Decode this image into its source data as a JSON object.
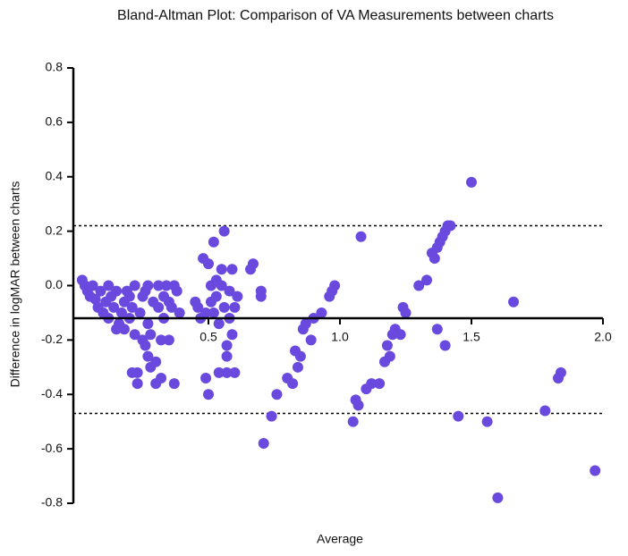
{
  "chart_data": {
    "type": "scatter",
    "title": "Bland-Altman Plot: Comparison of VA Measurements between charts",
    "xlabel": "Average",
    "ylabel": "Difference in logMAR between charts",
    "color": "#6a4ade",
    "xlim": [
      0,
      2.0
    ],
    "ylim": [
      -0.8,
      0.8
    ],
    "xticks": [
      {
        "value": 0.5,
        "label": "0.5"
      },
      {
        "value": 1.0,
        "label": "1.0"
      },
      {
        "value": 1.5,
        "label": "1.5"
      },
      {
        "value": 2.0,
        "label": "2.0"
      }
    ],
    "yticks": [
      0.8,
      0.6,
      0.4,
      0.2,
      {
        "value": 0,
        "label": "0.0"
      },
      -0.2,
      -0.4,
      -0.6,
      -0.8
    ],
    "mean_line": -0.12,
    "limit_lines": [
      0.22,
      -0.47
    ],
    "x": [
      0.02,
      0.03,
      0.04,
      0.05,
      0.06,
      0.07,
      0.08,
      0.09,
      0.1,
      0.11,
      0.12,
      0.12,
      0.13,
      0.14,
      0.15,
      0.16,
      0.17,
      0.18,
      0.18,
      0.19,
      0.2,
      0.2,
      0.21,
      0.22,
      0.22,
      0.23,
      0.23,
      0.24,
      0.25,
      0.25,
      0.26,
      0.27,
      0.27,
      0.28,
      0.28,
      0.29,
      0.3,
      0.3,
      0.31,
      0.31,
      0.32,
      0.32,
      0.33,
      0.33,
      0.34,
      0.35,
      0.35,
      0.36,
      0.37,
      0.37,
      0.38,
      0.39,
      0.27,
      0.21,
      0.15,
      0.26,
      0.45,
      0.46,
      0.47,
      0.48,
      0.49,
      0.49,
      0.5,
      0.5,
      0.51,
      0.51,
      0.52,
      0.52,
      0.53,
      0.53,
      0.54,
      0.54,
      0.55,
      0.55,
      0.56,
      0.56,
      0.57,
      0.57,
      0.58,
      0.58,
      0.59,
      0.59,
      0.6,
      0.61,
      0.6,
      0.57,
      0.66,
      0.67,
      0.7,
      0.7,
      0.71,
      0.74,
      0.76,
      0.8,
      0.82,
      0.83,
      0.84,
      0.85,
      0.86,
      0.87,
      0.89,
      0.9,
      0.93,
      0.96,
      0.97,
      0.98,
      1.05,
      1.06,
      1.07,
      1.08,
      1.1,
      1.12,
      1.15,
      1.17,
      1.18,
      1.19,
      1.2,
      1.21,
      1.23,
      1.24,
      1.25,
      1.3,
      1.33,
      1.35,
      1.36,
      1.37,
      1.38,
      1.39,
      1.4,
      1.41,
      1.42,
      1.37,
      1.4,
      1.45,
      1.5,
      1.56,
      1.6,
      1.66,
      1.78,
      1.83,
      1.84,
      1.97
    ],
    "values": [
      0.02,
      0,
      -0.02,
      -0.04,
      0,
      -0.05,
      -0.08,
      -0.02,
      -0.1,
      -0.06,
      0,
      -0.12,
      -0.04,
      -0.08,
      -0.02,
      -0.14,
      -0.1,
      -0.06,
      -0.16,
      -0.02,
      -0.12,
      -0.04,
      -0.08,
      -0.18,
      0,
      -0.32,
      -0.36,
      -0.1,
      -0.2,
      -0.04,
      -0.22,
      0,
      -0.14,
      -0.3,
      -0.18,
      -0.06,
      -0.36,
      -0.28,
      -0.08,
      0,
      -0.2,
      -0.34,
      -0.12,
      -0.04,
      0,
      -0.2,
      -0.06,
      -0.08,
      -0.36,
      0,
      -0.02,
      -0.1,
      -0.26,
      -0.32,
      -0.16,
      -0.02,
      -0.06,
      -0.08,
      -0.12,
      0.1,
      -0.1,
      -0.34,
      -0.4,
      0.08,
      0,
      -0.06,
      0.16,
      -0.1,
      0.02,
      -0.04,
      -0.14,
      -0.32,
      0.06,
      0,
      0.2,
      -0.08,
      -0.26,
      -0.32,
      -0.02,
      -0.12,
      0.06,
      -0.18,
      -0.32,
      -0.04,
      -0.08,
      -0.22,
      0.06,
      0.08,
      -0.02,
      -0.04,
      -0.58,
      -0.48,
      -0.4,
      -0.34,
      -0.36,
      -0.24,
      -0.3,
      -0.26,
      -0.16,
      -0.14,
      -0.2,
      -0.12,
      -0.1,
      -0.04,
      -0.02,
      0,
      -0.5,
      -0.42,
      -0.44,
      0.18,
      -0.38,
      -0.36,
      -0.36,
      -0.28,
      -0.22,
      -0.26,
      -0.18,
      -0.16,
      -0.18,
      -0.08,
      -0.1,
      0,
      0.02,
      0.12,
      0.1,
      0.14,
      0.16,
      0.18,
      0.2,
      0.22,
      0.22,
      -0.16,
      -0.22,
      -0.48,
      0.38,
      -0.5,
      -0.78,
      -0.06,
      -0.46,
      -0.34,
      -0.32,
      -0.68
    ]
  }
}
